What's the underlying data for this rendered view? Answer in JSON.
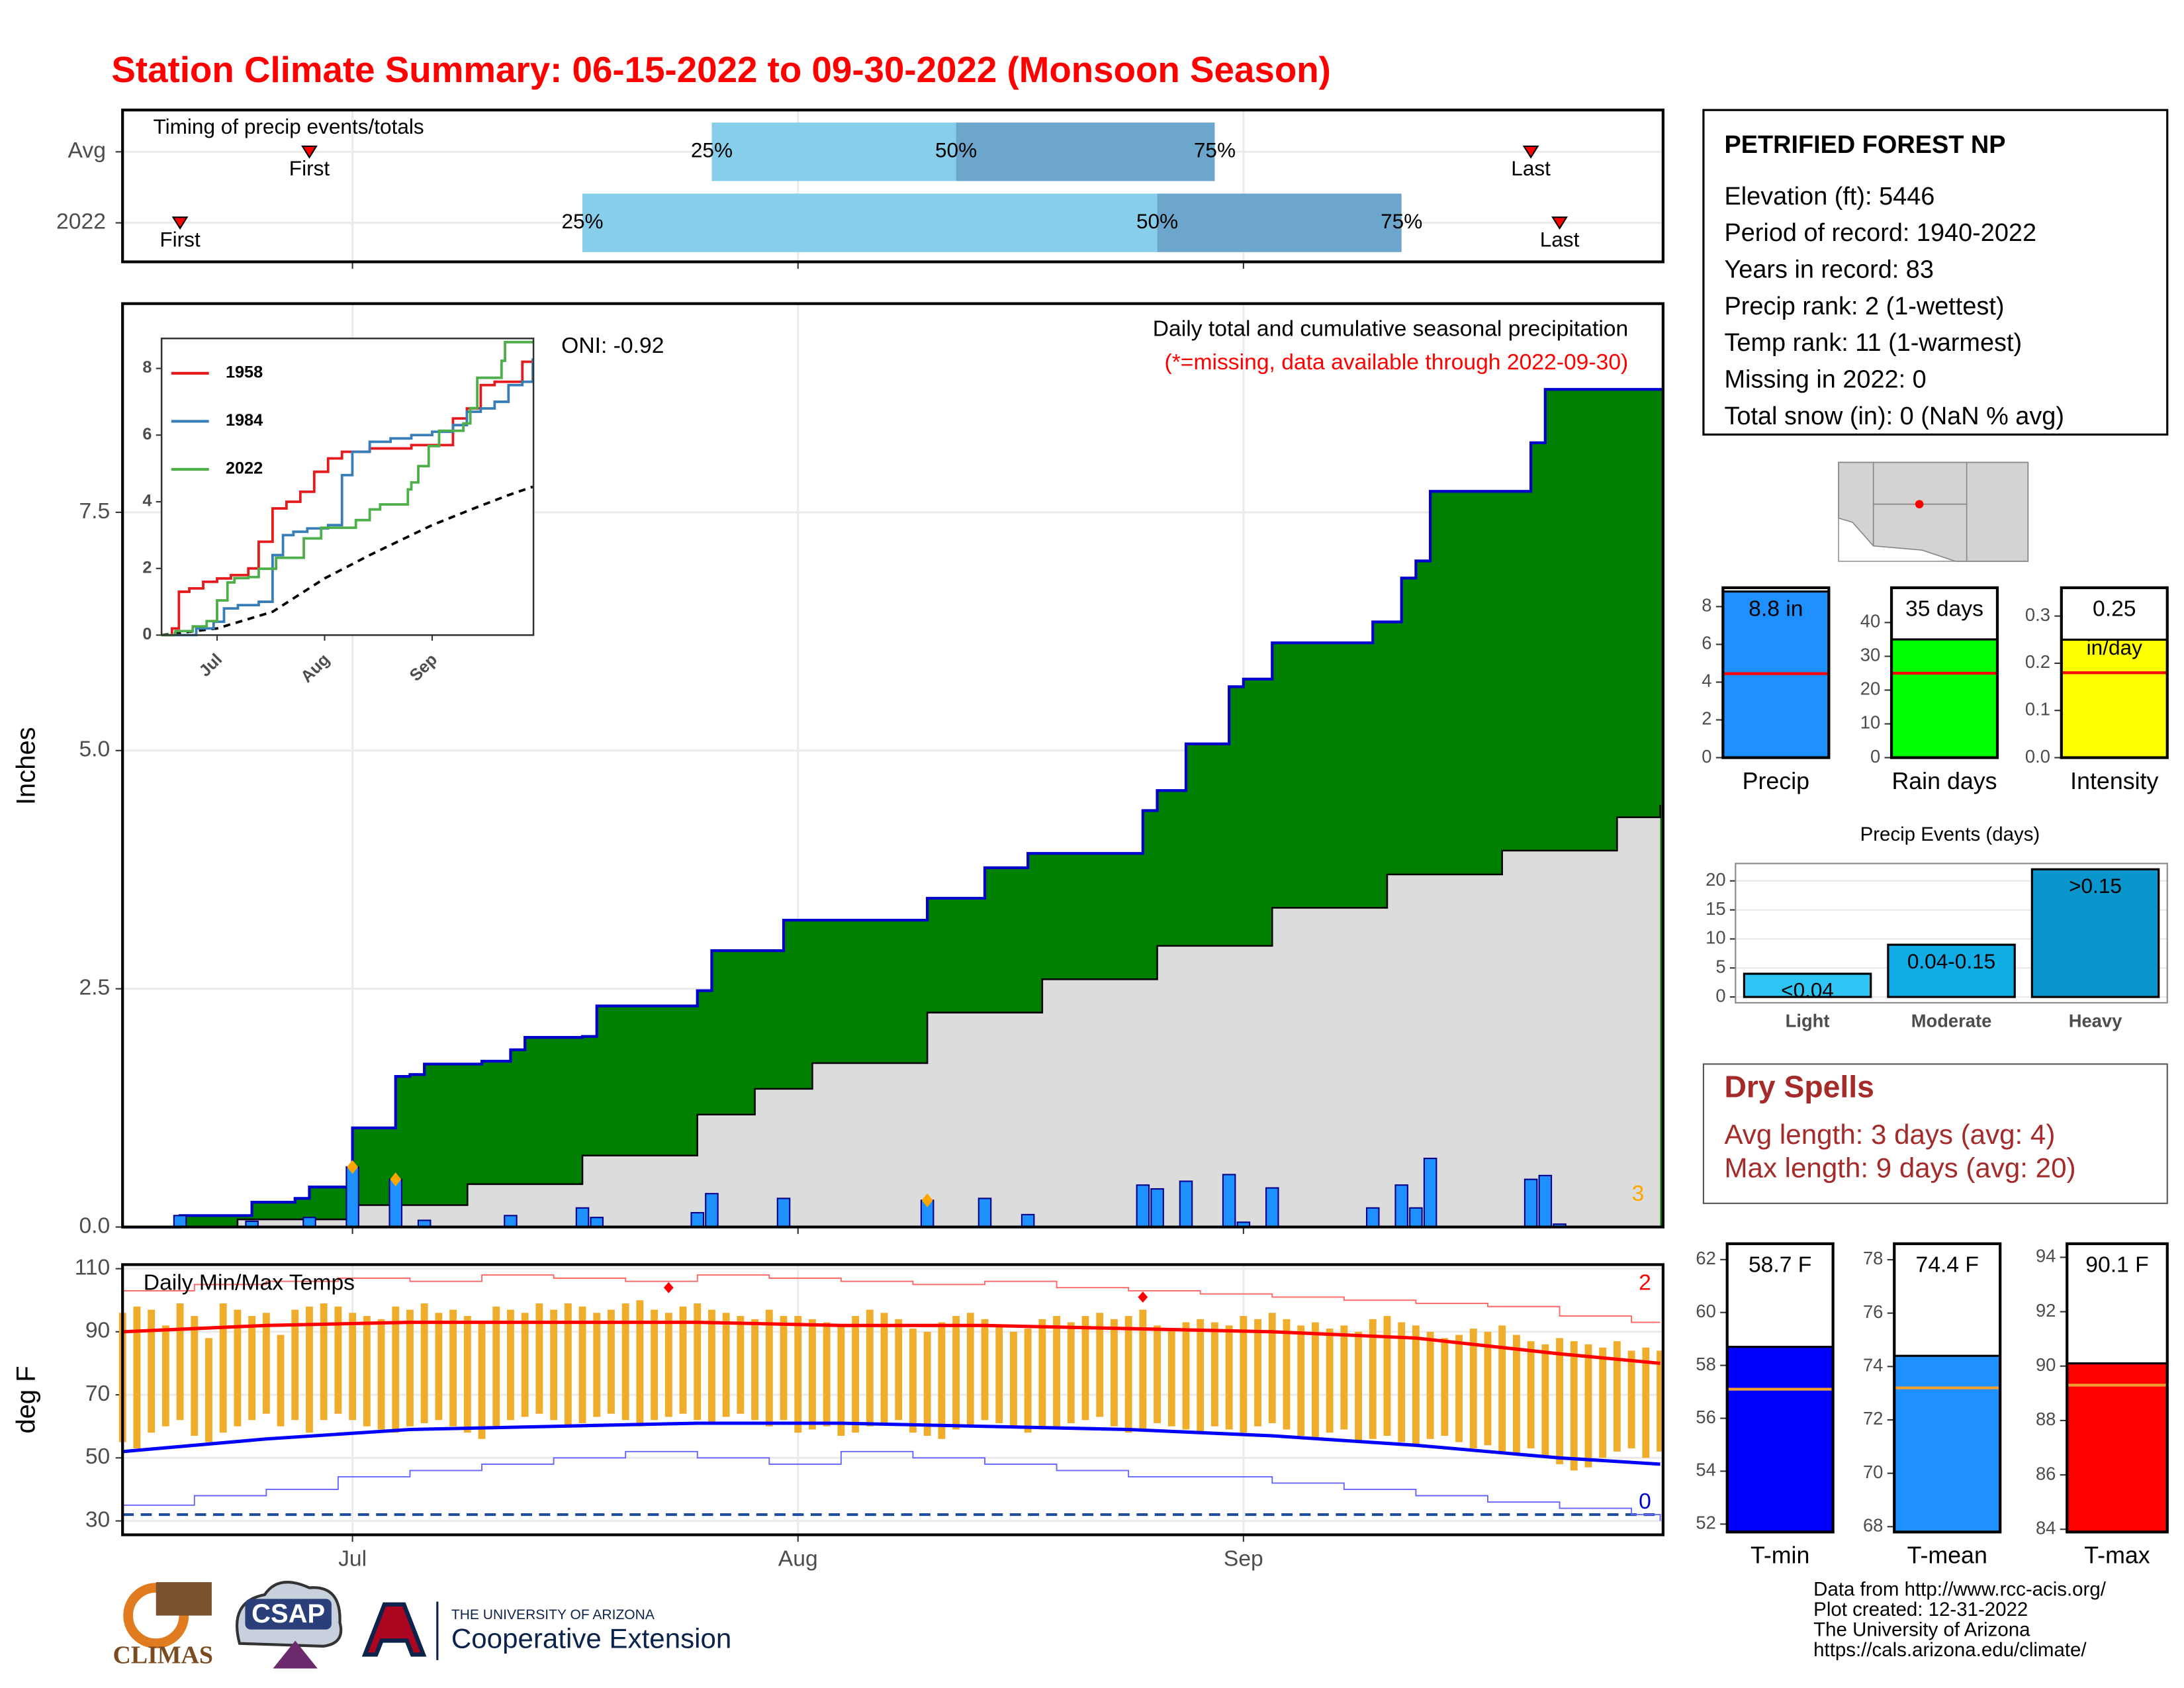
{
  "title": "Station Climate Summary: 06-15-2022 to 09-30-2022 (Monsoon Season)",
  "chart_data": [
    {
      "type": "timing",
      "title": "Timing of precip events/totals",
      "xlim": [
        0,
        107.2
      ],
      "xticks": [
        16,
        47,
        78
      ],
      "labels": {
        "first": "First",
        "last": "Last",
        "p25": "25%",
        "p50": "50%",
        "p75": "75%"
      },
      "rows": [
        {
          "name": "Avg",
          "first": 13,
          "p25": 41,
          "p50": 58,
          "p75": 76,
          "last": 98
        },
        {
          "name": "2022",
          "first": 4,
          "p25": 32,
          "p50": 72,
          "p75": 89,
          "last": 100
        }
      ],
      "colors": [
        "#87ceeb",
        "#6ca6cd"
      ]
    },
    {
      "type": "precip",
      "title": "Daily total and cumulative seasonal precipitation",
      "note": "(*=missing, data available through 2022-09-30)",
      "annotation": "ONI: -0.92",
      "count_label": "3",
      "ylabel": "Inches",
      "xlim": [
        0,
        107.2
      ],
      "xticks": [
        16,
        47,
        78
      ],
      "ylim": [
        0,
        9.69
      ],
      "yticks": [
        {
          "value": 0,
          "label": "0.0"
        },
        2.5,
        {
          "value": 5,
          "label": "5.0"
        },
        7.5
      ],
      "grid": true,
      "cumulative": {
        "color": "#008000",
        "line_color": "#0000cd",
        "x": [
          0,
          4,
          9,
          12,
          13,
          16,
          19,
          20,
          21,
          25,
          27,
          28,
          32,
          33,
          40,
          41,
          46,
          56,
          60,
          63,
          71,
          72,
          74,
          77,
          78,
          80,
          87,
          89,
          90,
          91,
          98,
          99,
          107
        ],
        "values": [
          0,
          0.12,
          0.26,
          0.3,
          0.42,
          1.04,
          1.58,
          1.6,
          1.71,
          1.74,
          1.86,
          1.99,
          2.0,
          2.32,
          2.48,
          2.9,
          3.22,
          3.45,
          3.77,
          3.92,
          4.37,
          4.58,
          5.07,
          5.67,
          5.75,
          6.13,
          6.35,
          6.81,
          6.99,
          7.72,
          8.23,
          8.79,
          8.79
        ]
      },
      "average": {
        "color": "#dcdcdc",
        "x": [
          0,
          8,
          16,
          24,
          32,
          40,
          44,
          48,
          56,
          64,
          72,
          80,
          88,
          96,
          104,
          107
        ],
        "values": [
          0,
          0.08,
          0.23,
          0.45,
          0.75,
          1.18,
          1.45,
          1.72,
          2.25,
          2.6,
          2.95,
          3.35,
          3.7,
          3.95,
          4.3,
          4.43
        ]
      },
      "daily": {
        "color": "#1e90ff",
        "x": [
          4,
          9,
          13,
          16,
          19,
          21,
          27,
          32,
          33,
          40,
          41,
          46,
          56,
          60,
          63,
          71,
          72,
          74,
          77,
          78,
          80,
          87,
          89,
          90,
          91,
          98,
          99,
          100
        ],
        "values": [
          0.12,
          0.06,
          0.1,
          0.63,
          0.5,
          0.07,
          0.12,
          0.2,
          0.1,
          0.15,
          0.35,
          0.3,
          0.28,
          0.3,
          0.13,
          0.44,
          0.4,
          0.48,
          0.55,
          0.05,
          0.41,
          0.2,
          0.44,
          0.2,
          0.72,
          0.5,
          0.54,
          0.03
        ]
      },
      "flags": {
        "color": "#ffa500",
        "x": [
          16,
          19,
          56
        ],
        "values": [
          0.63,
          0.5,
          0.28
        ]
      }
    },
    {
      "type": "line",
      "xlim": [
        0,
        107.2
      ],
      "xticks": [
        {
          "value": 16,
          "label": "Jul"
        },
        {
          "value": 47,
          "label": "Aug"
        },
        {
          "value": 78,
          "label": "Sep"
        }
      ],
      "ylim": [
        0,
        8.9
      ],
      "yticks": [
        0,
        2,
        4,
        6,
        8
      ],
      "series": [
        {
          "name": "1958",
          "color": "#e41a1c",
          "x": [
            0,
            3,
            5,
            8,
            12,
            16,
            20,
            25,
            28,
            32,
            36,
            40,
            44,
            48,
            52,
            56,
            60,
            66,
            72,
            78,
            84,
            88,
            92,
            96,
            100,
            104,
            107
          ],
          "values": [
            0,
            0.2,
            1.3,
            1.4,
            1.6,
            1.7,
            1.8,
            2.0,
            2.8,
            3.8,
            4.0,
            4.3,
            4.9,
            5.3,
            5.5,
            5.5,
            5.6,
            5.6,
            5.7,
            5.7,
            6.5,
            6.8,
            7.5,
            7.6,
            7.6,
            8.2,
            8.2
          ]
        },
        {
          "name": "1984",
          "color": "#377eb8",
          "x": [
            0,
            6,
            10,
            15,
            18,
            22,
            28,
            32,
            35,
            38,
            42,
            48,
            52,
            55,
            60,
            66,
            72,
            78,
            84,
            88,
            92,
            96,
            100,
            104,
            107
          ],
          "values": [
            0,
            0,
            0.2,
            0.4,
            0.8,
            0.9,
            1.0,
            2.4,
            3.0,
            3.1,
            3.2,
            3.3,
            4.8,
            5.5,
            5.8,
            5.9,
            6.0,
            6.1,
            6.3,
            6.7,
            6.8,
            7.0,
            7.5,
            7.6,
            8.3
          ]
        },
        {
          "name": "2022",
          "color": "#4daf4a",
          "x": [
            0,
            4,
            9,
            13,
            16,
            19,
            21,
            25,
            28,
            33,
            41,
            46,
            56,
            60,
            63,
            71,
            72,
            74,
            77,
            80,
            87,
            89,
            91,
            98,
            99,
            107
          ],
          "values": [
            0,
            0.12,
            0.26,
            0.42,
            1.04,
            1.58,
            1.71,
            1.74,
            1.99,
            2.32,
            2.9,
            3.22,
            3.45,
            3.77,
            3.92,
            4.37,
            4.58,
            5.07,
            5.67,
            6.13,
            6.35,
            6.81,
            7.72,
            8.23,
            8.79,
            8.79
          ]
        }
      ],
      "average": {
        "color": "#000000",
        "x": [
          0,
          16,
          32,
          47,
          60,
          78,
          90,
          100,
          107
        ],
        "values": [
          0,
          0.2,
          0.7,
          1.7,
          2.4,
          3.3,
          3.8,
          4.2,
          4.45
        ]
      }
    },
    {
      "type": "temperature",
      "title": "Daily Min/Max Temps",
      "ylabel": "deg F",
      "xlim": [
        0,
        107.2
      ],
      "xticks": [
        {
          "value": 16,
          "label": "Jul"
        },
        {
          "value": 47,
          "label": "Aug"
        },
        {
          "value": 78,
          "label": "Sep"
        }
      ],
      "ylim": [
        25.6,
        111.3
      ],
      "yticks": [
        30,
        50,
        70,
        90,
        110
      ],
      "grid": true,
      "high_count": "2",
      "low_count": "0",
      "reference_line": 32,
      "days": {
        "color": "#f0ad2c",
        "x": [
          0,
          1,
          2,
          3,
          4,
          5,
          6,
          7,
          8,
          9,
          10,
          11,
          12,
          13,
          14,
          15,
          16,
          17,
          18,
          19,
          20,
          21,
          22,
          23,
          24,
          25,
          26,
          27,
          28,
          29,
          30,
          31,
          32,
          33,
          34,
          35,
          36,
          37,
          38,
          39,
          40,
          41,
          42,
          43,
          44,
          45,
          46,
          47,
          48,
          49,
          50,
          51,
          52,
          53,
          54,
          55,
          56,
          57,
          58,
          59,
          60,
          61,
          62,
          63,
          64,
          65,
          66,
          67,
          68,
          69,
          70,
          71,
          72,
          73,
          74,
          75,
          76,
          77,
          78,
          79,
          80,
          81,
          82,
          83,
          84,
          85,
          86,
          87,
          88,
          89,
          90,
          91,
          92,
          93,
          94,
          95,
          96,
          97,
          98,
          99,
          100,
          101,
          102,
          103,
          104,
          105,
          106,
          107
        ],
        "max": [
          96,
          98,
          97,
          92,
          99,
          95,
          88,
          99,
          97,
          95,
          96,
          89,
          97,
          98,
          99,
          98,
          96,
          95,
          94,
          98,
          97,
          99,
          96,
          97,
          95,
          93,
          98,
          97,
          96,
          99,
          97,
          99,
          98,
          96,
          97,
          99,
          100,
          97,
          96,
          98,
          99,
          97,
          96,
          95,
          94,
          97,
          95,
          95,
          94,
          93,
          92,
          95,
          97,
          96,
          94,
          91,
          90,
          93,
          95,
          96,
          94,
          92,
          90,
          91,
          94,
          95,
          93,
          95,
          96,
          94,
          95,
          97,
          92,
          91,
          93,
          94,
          93,
          92,
          95,
          94,
          96,
          94,
          92,
          93,
          91,
          92,
          90,
          94,
          95,
          93,
          92,
          90,
          88,
          89,
          91,
          90,
          92,
          89,
          87,
          86,
          88,
          87,
          86,
          85,
          87,
          84,
          85,
          84
        ],
        "min": [
          55,
          53,
          58,
          60,
          62,
          57,
          55,
          58,
          60,
          62,
          64,
          60,
          62,
          58,
          62,
          64,
          62,
          60,
          59,
          58,
          60,
          61,
          62,
          60,
          58,
          56,
          60,
          62,
          63,
          64,
          62,
          60,
          61,
          63,
          64,
          62,
          60,
          62,
          63,
          64,
          62,
          61,
          63,
          64,
          62,
          60,
          62,
          58,
          59,
          60,
          57,
          58,
          60,
          61,
          62,
          58,
          57,
          56,
          59,
          60,
          62,
          61,
          60,
          58,
          59,
          60,
          61,
          62,
          63,
          60,
          58,
          59,
          61,
          60,
          59,
          58,
          60,
          59,
          58,
          60,
          61,
          59,
          57,
          56,
          58,
          59,
          55,
          56,
          57,
          55,
          54,
          56,
          57,
          55,
          53,
          54,
          52,
          51,
          53,
          50,
          48,
          46,
          47,
          50,
          52,
          53,
          50,
          52
        ]
      },
      "avg_max": {
        "color": "#ff0000",
        "x": [
          0,
          10,
          20,
          30,
          40,
          50,
          60,
          70,
          80,
          90,
          100,
          107
        ],
        "values": [
          90,
          92,
          93,
          93,
          93,
          92,
          92,
          91,
          90,
          88,
          83,
          80
        ]
      },
      "avg_min": {
        "color": "#0000ff",
        "x": [
          0,
          10,
          20,
          30,
          40,
          50,
          60,
          70,
          80,
          90,
          100,
          107
        ],
        "values": [
          52,
          56,
          59,
          60,
          61,
          61,
          60,
          59,
          57,
          54,
          50,
          48
        ]
      },
      "record_max": {
        "color": "#ff6666",
        "x": [
          0,
          5,
          10,
          15,
          20,
          25,
          30,
          35,
          40,
          45,
          50,
          55,
          60,
          65,
          70,
          75,
          80,
          85,
          90,
          95,
          100,
          105,
          107
        ],
        "values": [
          103,
          105,
          106,
          107,
          106,
          108,
          107,
          106,
          108,
          107,
          106,
          105,
          106,
          104,
          103,
          102,
          101,
          100,
          99,
          98,
          95,
          93,
          93
        ]
      },
      "record_min": {
        "color": "#6666ff",
        "x": [
          0,
          5,
          10,
          15,
          20,
          25,
          30,
          35,
          40,
          45,
          50,
          55,
          60,
          65,
          70,
          75,
          80,
          85,
          90,
          95,
          100,
          105,
          107
        ],
        "values": [
          35,
          38,
          40,
          44,
          46,
          48,
          50,
          52,
          50,
          48,
          52,
          50,
          48,
          46,
          44,
          44,
          42,
          40,
          38,
          36,
          34,
          32,
          30
        ]
      },
      "records_set": {
        "color": "#ff0000",
        "x": [
          38,
          71
        ],
        "values": [
          104,
          101
        ]
      }
    },
    {
      "type": "bar",
      "categories": [
        "Precip"
      ],
      "values": [
        8.8
      ],
      "value_labels": [
        "8.8 in"
      ],
      "average": 4.45,
      "color": "#1e90ff",
      "average_color": "#ff0000",
      "ylim": [
        0,
        9
      ],
      "yticks": [
        0,
        2,
        4,
        6,
        8
      ]
    },
    {
      "type": "bar",
      "categories": [
        "Rain days"
      ],
      "values": [
        35
      ],
      "value_labels": [
        "35 days"
      ],
      "average": 25,
      "color": "#00ff00",
      "average_color": "#ff0000",
      "ylim": [
        0,
        50.3
      ],
      "yticks": [
        0,
        10,
        20,
        30,
        40
      ]
    },
    {
      "type": "bar",
      "categories": [
        "Intensity"
      ],
      "values": [
        0.25
      ],
      "value_labels": [
        "0.25"
      ],
      "unit_label": "in/day",
      "average": 0.18,
      "color": "#ffff00",
      "average_color": "#ff0000",
      "ylim": [
        0,
        0.36
      ],
      "yticks": [
        {
          "value": 0,
          "label": "0.0"
        },
        0.1,
        0.2,
        0.3
      ]
    },
    {
      "type": "events",
      "title": "Precip Events (days)",
      "categories": [
        "Light",
        "Moderate",
        "Heavy"
      ],
      "values": [
        4,
        9,
        22
      ],
      "bin_labels": [
        "<0.04",
        "0.04-0.15",
        ">0.15"
      ],
      "colors": [
        "#2ec4f4",
        "#10ace6",
        "#0896cc"
      ],
      "ylim": [
        -1,
        23
      ],
      "yticks": [
        0,
        5,
        10,
        15,
        20
      ],
      "grid": true
    },
    {
      "type": "bar",
      "categories": [
        "T-min"
      ],
      "values": [
        58.7
      ],
      "value_labels": [
        "58.7 F"
      ],
      "average": 57.1,
      "color": "#0000ff",
      "average_color": "#f0a030",
      "ylim": [
        51.7,
        62.6
      ],
      "yticks": [
        52,
        54,
        56,
        58,
        60,
        62
      ]
    },
    {
      "type": "bar",
      "categories": [
        "T-mean"
      ],
      "values": [
        74.4
      ],
      "value_labels": [
        "74.4 F"
      ],
      "average": 73.2,
      "color": "#1e90ff",
      "average_color": "#f0a030",
      "ylim": [
        67.8,
        78.6
      ],
      "yticks": [
        68,
        70,
        72,
        74,
        76,
        78
      ]
    },
    {
      "type": "bar",
      "categories": [
        "T-max"
      ],
      "values": [
        90.1
      ],
      "value_labels": [
        "90.1 F"
      ],
      "average": 89.3,
      "color": "#ff0000",
      "average_color": "#f0a030",
      "ylim": [
        83.9,
        94.5
      ],
      "yticks": [
        84,
        86,
        88,
        90,
        92,
        94
      ]
    }
  ],
  "station": {
    "name": "PETRIFIED FOREST NP",
    "lines": [
      "Elevation (ft): 5446",
      "Period of record: 1940-2022",
      "Years in record: 83",
      "Precip rank: 2 (1-wettest)",
      "Temp rank: 11 (1-warmest)",
      "Missing in 2022: 0",
      "Total snow (in): 0 (NaN % avg)"
    ]
  },
  "dry_spells": {
    "title": "Dry Spells",
    "lines": [
      "Avg length: 3 days (avg: 4)",
      "Max length: 9 days (avg: 20)"
    ]
  },
  "credits": [
    "Data from http://www.rcc-acis.org/",
    "Plot created: 12-31-2022",
    "The University of Arizona",
    "https://cals.arizona.edu/climate/"
  ],
  "logos": {
    "climas": "CLIMAS",
    "csap": "CSAP",
    "university": "THE UNIVERSITY OF ARIZONA",
    "extension": "Cooperative Extension"
  }
}
